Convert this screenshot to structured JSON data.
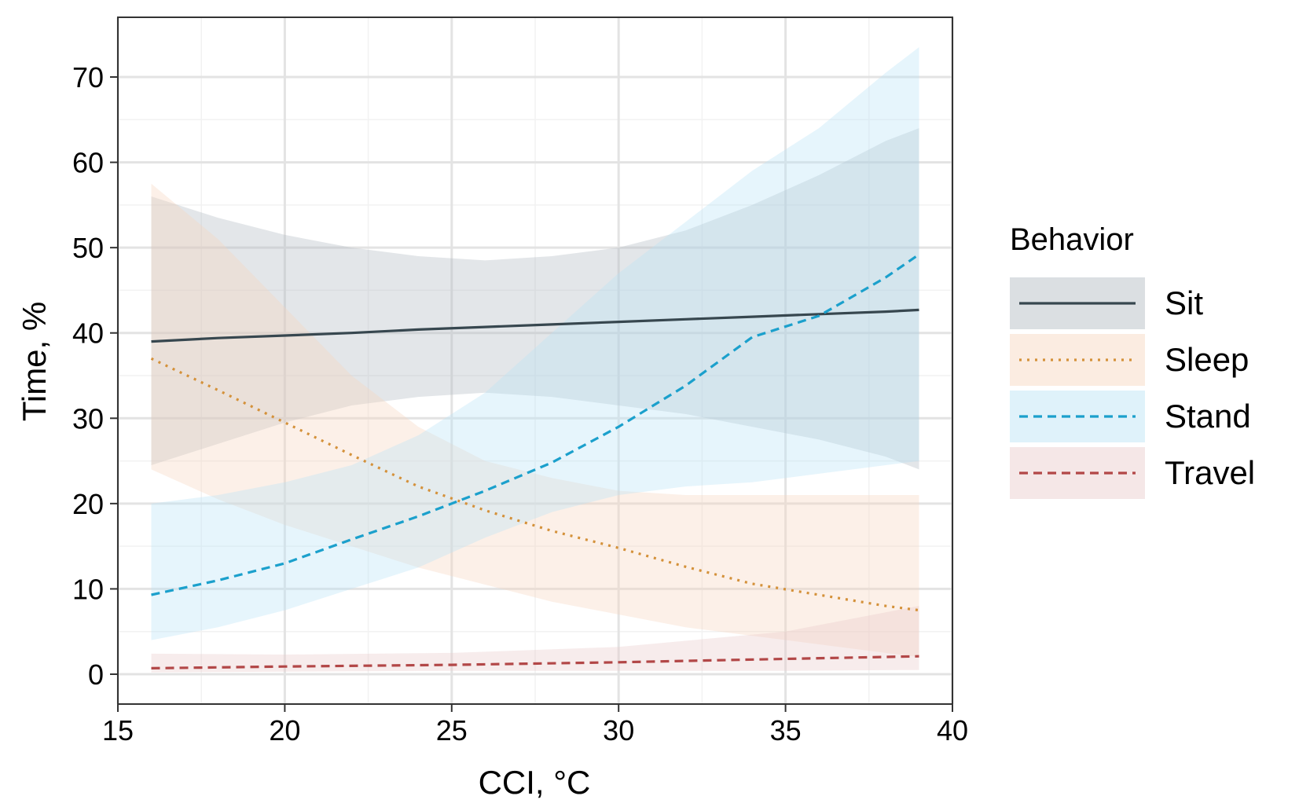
{
  "chart_data": {
    "type": "line",
    "xlabel": "CCI, °C",
    "ylabel": "Time, %",
    "xlim": [
      15,
      40
    ],
    "ylim": [
      -3.5,
      77
    ],
    "x_ticks": [
      15,
      20,
      25,
      30,
      35,
      40
    ],
    "y_ticks": [
      0,
      10,
      20,
      30,
      40,
      50,
      60,
      70
    ],
    "grid": true,
    "legend": {
      "title": "Behavior",
      "position": "right",
      "entries": [
        "Sit",
        "Sleep",
        "Stand",
        "Travel"
      ]
    },
    "series": [
      {
        "name": "Sit",
        "color": "#37474f",
        "line_style": "solid",
        "ribbon_color": "#b0b7bf",
        "x": [
          16,
          18,
          20,
          22,
          24,
          26,
          28,
          30,
          32,
          34,
          36,
          38,
          39
        ],
        "values": [
          39.0,
          39.4,
          39.7,
          40.0,
          40.4,
          40.7,
          41.0,
          41.3,
          41.6,
          41.9,
          42.2,
          42.5,
          42.7
        ],
        "lower": [
          24.5,
          27.0,
          29.5,
          31.5,
          32.5,
          33.0,
          32.5,
          31.5,
          30.5,
          29.0,
          27.5,
          25.5,
          24.0
        ],
        "upper": [
          56.0,
          53.5,
          51.5,
          50.0,
          49.0,
          48.5,
          49.0,
          50.0,
          52.0,
          55.0,
          58.5,
          62.5,
          64.0
        ]
      },
      {
        "name": "Sleep",
        "color": "#d4913a",
        "line_style": "dotted",
        "ribbon_color": "#f6d5bd",
        "x": [
          16,
          18,
          20,
          22,
          24,
          26,
          28,
          30,
          32,
          34,
          36,
          38,
          39
        ],
        "values": [
          37.0,
          33.3,
          29.5,
          25.7,
          22.0,
          19.2,
          16.8,
          14.8,
          12.6,
          10.6,
          9.3,
          8.0,
          7.5
        ],
        "lower": [
          24.0,
          20.5,
          17.5,
          15.0,
          12.5,
          10.5,
          8.5,
          7.0,
          5.5,
          4.5,
          3.5,
          2.5,
          2.0
        ],
        "upper": [
          57.5,
          51.0,
          43.0,
          35.0,
          29.0,
          25.0,
          23.0,
          21.5,
          21.0,
          21.0,
          21.0,
          21.0,
          21.0
        ]
      },
      {
        "name": "Stand",
        "color": "#1ba0cc",
        "line_style": "dashed",
        "ribbon_color": "#b7e2f5",
        "x": [
          16,
          18,
          20,
          22,
          24,
          26,
          28,
          30,
          32,
          34,
          36,
          38,
          39
        ],
        "values": [
          9.3,
          11.0,
          13.0,
          15.8,
          18.5,
          21.5,
          24.8,
          29.0,
          33.8,
          39.5,
          42.0,
          46.5,
          49.2
        ],
        "lower": [
          4.0,
          5.5,
          7.5,
          10.0,
          12.5,
          16.0,
          19.0,
          21.0,
          22.0,
          22.5,
          23.5,
          24.5,
          25.0
        ],
        "upper": [
          20.0,
          21.0,
          22.5,
          24.5,
          28.0,
          33.0,
          40.0,
          47.0,
          53.0,
          59.0,
          64.0,
          70.5,
          73.5
        ]
      },
      {
        "name": "Travel",
        "color": "#b24747",
        "line_style": "dashed",
        "ribbon_color": "#e8c9c9",
        "x": [
          16,
          20,
          25,
          30,
          35,
          39
        ],
        "values": [
          0.7,
          0.9,
          1.1,
          1.4,
          1.8,
          2.1
        ],
        "lower": [
          0.2,
          0.3,
          0.4,
          0.4,
          0.4,
          0.5
        ],
        "upper": [
          2.4,
          2.3,
          2.5,
          3.2,
          5.0,
          8.0
        ]
      }
    ]
  }
}
